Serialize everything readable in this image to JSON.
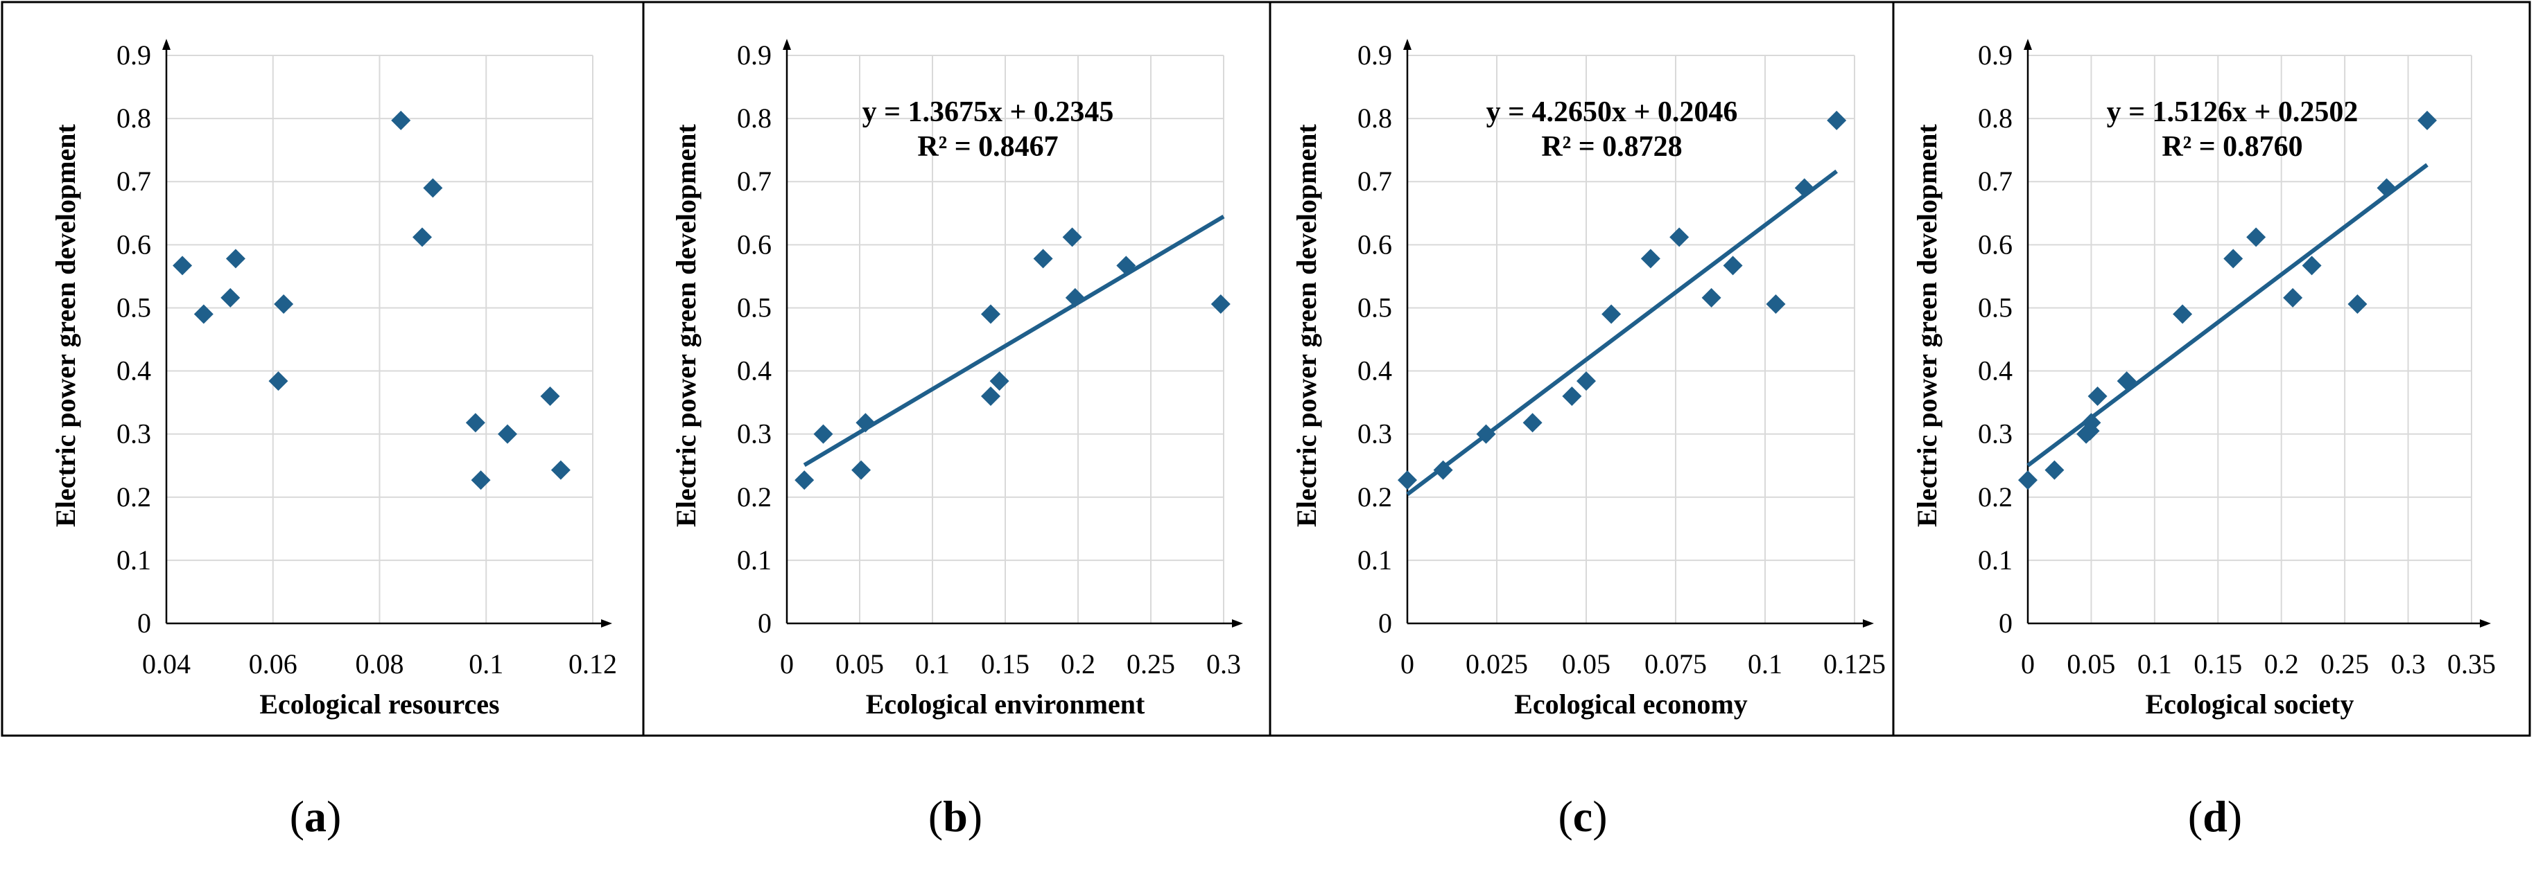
{
  "colors": {
    "marker": "#1f5f8b",
    "trendline": "#1f5f8b",
    "grid": "#d9d9d9"
  },
  "chart_data": [
    {
      "type": "scatter",
      "panel_label": "a",
      "xlabel": "Ecological resources",
      "ylabel": "Electric power green development",
      "xlim": [
        0.04,
        0.12
      ],
      "xticks": [
        "0.04",
        "0.06",
        "0.08",
        "0.1",
        "0.12"
      ],
      "ylim": [
        0,
        0.9
      ],
      "yticks": [
        "0",
        "0.1",
        "0.2",
        "0.3",
        "0.4",
        "0.5",
        "0.6",
        "0.7",
        "0.8",
        "0.9"
      ],
      "grid": true,
      "x": [
        0.043,
        0.047,
        0.052,
        0.053,
        0.061,
        0.062,
        0.084,
        0.088,
        0.09,
        0.098,
        0.099,
        0.104,
        0.112,
        0.114
      ],
      "y": [
        0.567,
        0.49,
        0.516,
        0.578,
        0.384,
        0.506,
        0.797,
        0.612,
        0.69,
        0.318,
        0.227,
        0.3,
        0.36,
        0.243
      ],
      "trendline": null
    },
    {
      "type": "scatter",
      "panel_label": "b",
      "xlabel": "Ecological environment",
      "ylabel": "Electric power green development",
      "xlim": [
        0,
        0.3
      ],
      "xticks": [
        "0",
        "0.05",
        "0.1",
        "0.15",
        "0.2",
        "0.25",
        "0.3"
      ],
      "ylim": [
        0,
        0.9
      ],
      "yticks": [
        "0",
        "0.1",
        "0.2",
        "0.3",
        "0.4",
        "0.5",
        "0.6",
        "0.7",
        "0.8",
        "0.9"
      ],
      "grid": true,
      "x": [
        0.012,
        0.025,
        0.051,
        0.054,
        0.14,
        0.14,
        0.146,
        0.176,
        0.196,
        0.198,
        0.233,
        0.298
      ],
      "y": [
        0.227,
        0.3,
        0.243,
        0.318,
        0.36,
        0.49,
        0.384,
        0.578,
        0.612,
        0.516,
        0.567,
        0.506
      ],
      "trendline": {
        "slope": 1.3675,
        "intercept": 0.2345,
        "x_range": [
          0.012,
          0.3
        ],
        "equation": "y = 1.3675x + 0.2345",
        "r2": "R² = 0.8467"
      }
    },
    {
      "type": "scatter",
      "panel_label": "c",
      "xlabel": "Ecological economy",
      "ylabel": "Electric power green development",
      "xlim": [
        0,
        0.125
      ],
      "xticks": [
        "0",
        "0.025",
        "0.05",
        "0.075",
        "0.1",
        "0.125"
      ],
      "ylim": [
        0,
        0.9
      ],
      "yticks": [
        "0",
        "0.1",
        "0.2",
        "0.3",
        "0.4",
        "0.5",
        "0.6",
        "0.7",
        "0.8",
        "0.9"
      ],
      "grid": true,
      "x": [
        0.0,
        0.01,
        0.022,
        0.035,
        0.046,
        0.05,
        0.057,
        0.068,
        0.076,
        0.085,
        0.091,
        0.103,
        0.111,
        0.12
      ],
      "y": [
        0.227,
        0.243,
        0.3,
        0.318,
        0.36,
        0.384,
        0.49,
        0.578,
        0.612,
        0.516,
        0.567,
        0.506,
        0.69,
        0.797
      ],
      "trendline": {
        "slope": 4.265,
        "intercept": 0.2046,
        "x_range": [
          0,
          0.12
        ],
        "equation": "y = 4.2650x + 0.2046",
        "r2": "R² = 0.8728"
      }
    },
    {
      "type": "scatter",
      "panel_label": "d",
      "xlabel": "Ecological society",
      "ylabel": "Electric power green development",
      "xlim": [
        0,
        0.35
      ],
      "xticks": [
        "0",
        "0.05",
        "0.1",
        "0.15",
        "0.2",
        "0.25",
        "0.3",
        "0.35"
      ],
      "ylim": [
        0,
        0.9
      ],
      "yticks": [
        "0",
        "0.1",
        "0.2",
        "0.3",
        "0.4",
        "0.5",
        "0.6",
        "0.7",
        "0.8",
        "0.9"
      ],
      "grid": true,
      "x": [
        0.0,
        0.021,
        0.046,
        0.049,
        0.05,
        0.055,
        0.078,
        0.122,
        0.162,
        0.18,
        0.209,
        0.224,
        0.26,
        0.283,
        0.315
      ],
      "y": [
        0.227,
        0.243,
        0.3,
        0.305,
        0.318,
        0.36,
        0.384,
        0.49,
        0.578,
        0.612,
        0.516,
        0.567,
        0.506,
        0.69,
        0.797
      ],
      "trendline": {
        "slope": 1.5126,
        "intercept": 0.2502,
        "x_range": [
          0,
          0.315
        ],
        "equation": "y = 1.5126x + 0.2502",
        "r2": "R² = 0.8760"
      }
    }
  ]
}
